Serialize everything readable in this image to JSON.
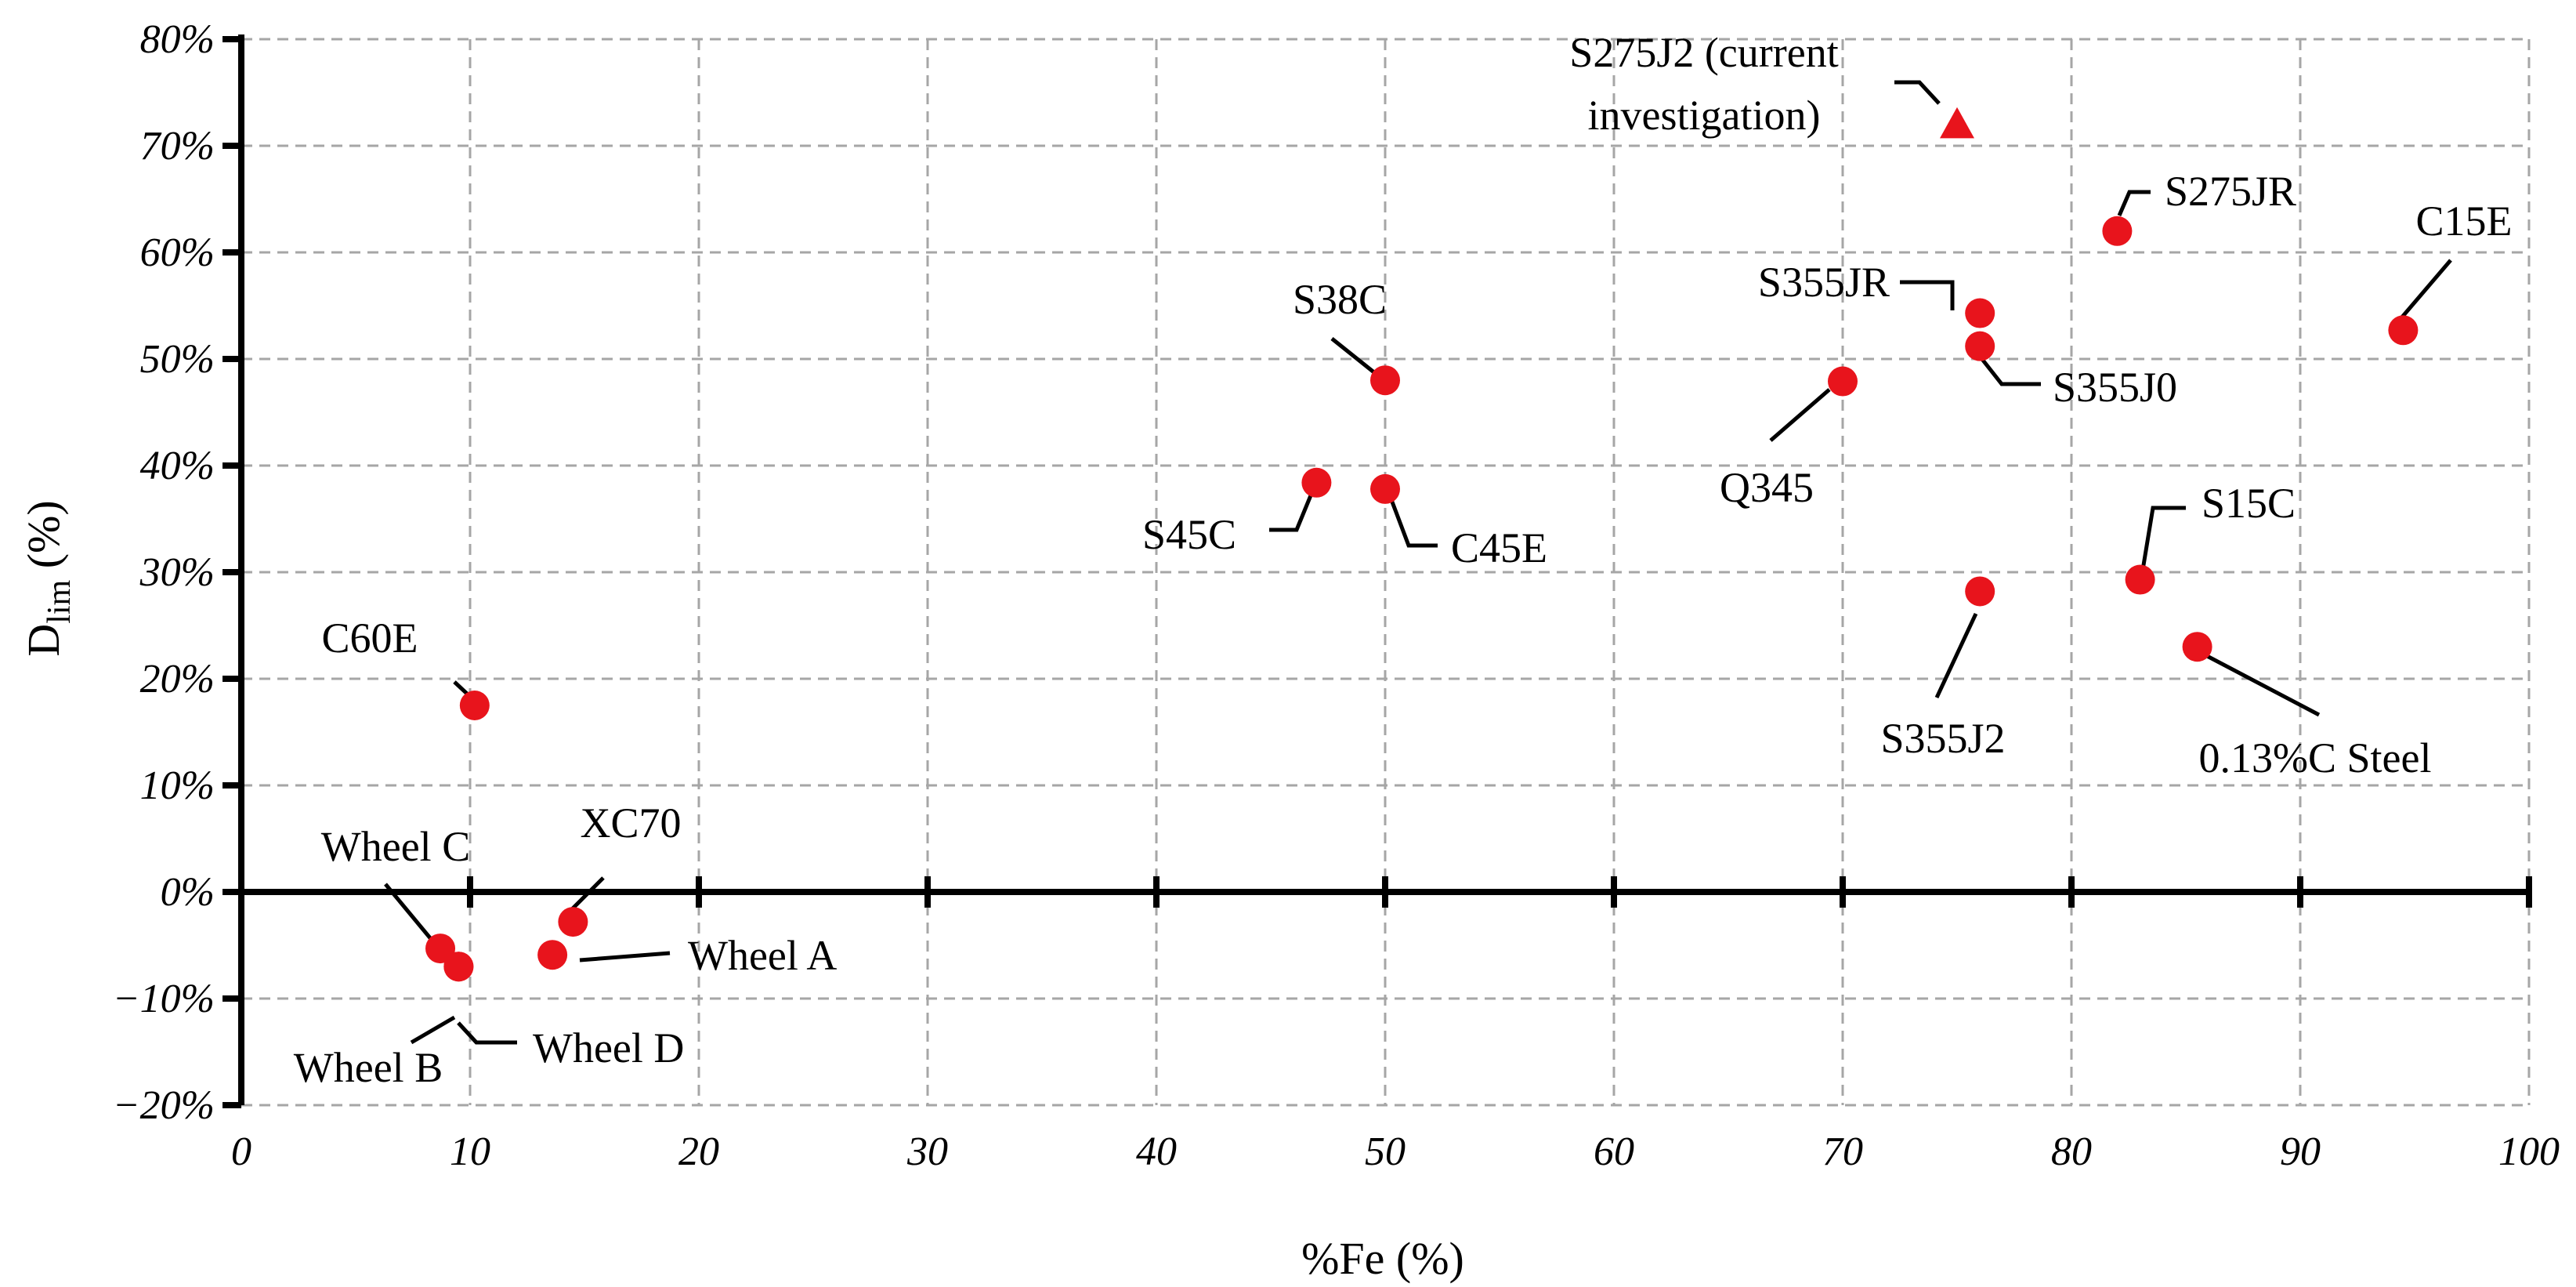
{
  "chart_data": {
    "type": "scatter",
    "xlabel": "%Fe (%)",
    "ylabel_main": "D",
    "ylabel_sub": "lim",
    "ylabel_tail": " (%)",
    "xlim": [
      0,
      100
    ],
    "ylim": [
      -20,
      80
    ],
    "x_ticks": [
      0,
      10,
      20,
      30,
      40,
      50,
      60,
      70,
      80,
      90,
      100
    ],
    "y_ticks": [
      80,
      70,
      60,
      50,
      40,
      30,
      20,
      10,
      0,
      -10,
      -20
    ],
    "y_tick_labels": [
      "80%",
      "70%",
      "60%",
      "50%",
      "40%",
      "30%",
      "20%",
      "10%",
      "0%",
      "−10%",
      "−20%"
    ],
    "grid": true,
    "marker_color": "#e8141c",
    "points": [
      {
        "label": "C60E",
        "x": 10.2,
        "y": 17.5,
        "marker": "circle"
      },
      {
        "label": "Wheel C",
        "x": 8.7,
        "y": -5.3,
        "marker": "circle"
      },
      {
        "label": "Wheel B",
        "x": 9.5,
        "y": -7.0,
        "marker": "circle"
      },
      {
        "label": "Wheel D",
        "x": 9.5,
        "y": -7.0,
        "marker": "circle"
      },
      {
        "label": "XC70",
        "x": 14.5,
        "y": -2.8,
        "marker": "circle"
      },
      {
        "label": "Wheel A",
        "x": 13.6,
        "y": -5.9,
        "marker": "circle"
      },
      {
        "label": "S38C",
        "x": 50.0,
        "y": 48.0,
        "marker": "circle"
      },
      {
        "label": "S45C",
        "x": 47.0,
        "y": 38.4,
        "marker": "circle"
      },
      {
        "label": "C45E",
        "x": 50.0,
        "y": 37.8,
        "marker": "circle"
      },
      {
        "label": "Q345",
        "x": 70.0,
        "y": 47.9,
        "marker": "circle"
      },
      {
        "label": "S355JR",
        "x": 76.0,
        "y": 54.3,
        "marker": "circle"
      },
      {
        "label": "S355J0",
        "x": 76.0,
        "y": 51.2,
        "marker": "circle"
      },
      {
        "label": "S355J2",
        "x": 76.0,
        "y": 28.2,
        "marker": "circle"
      },
      {
        "label": "S275JR",
        "x": 82.0,
        "y": 62.0,
        "marker": "circle"
      },
      {
        "label": "S15C",
        "x": 83.0,
        "y": 29.3,
        "marker": "circle"
      },
      {
        "label": "0.13%C Steel",
        "x": 85.5,
        "y": 23.0,
        "marker": "circle"
      },
      {
        "label": "C15E",
        "x": 94.5,
        "y": 52.7,
        "marker": "circle"
      },
      {
        "label": "S275J2 (current investigation)",
        "x": 75.0,
        "y": 72.0,
        "marker": "triangle"
      }
    ]
  }
}
